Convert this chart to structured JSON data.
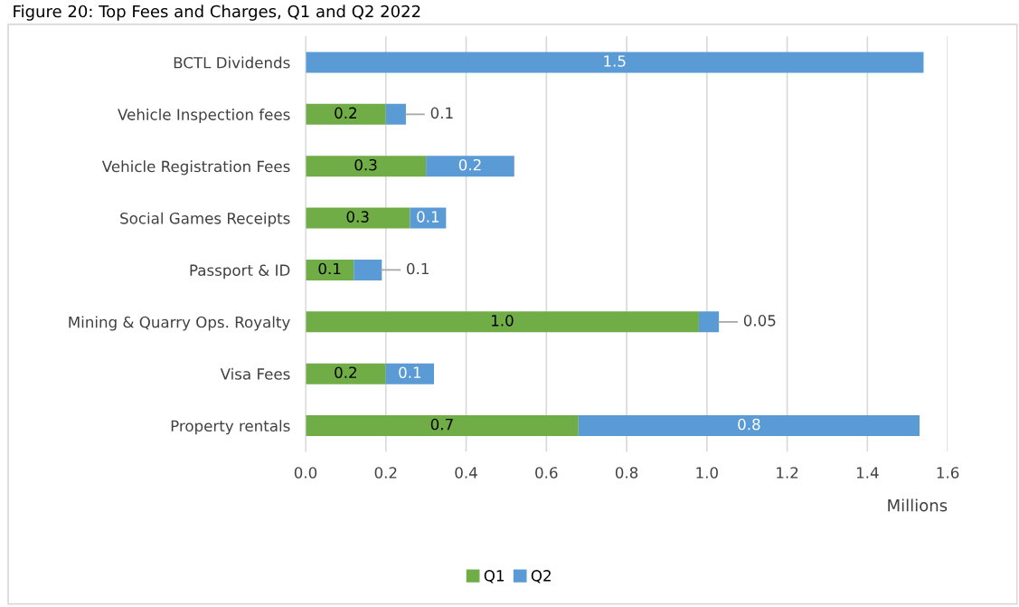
{
  "chart_data": {
    "type": "bar",
    "orientation": "horizontal",
    "stacked": true,
    "title": "Figure 20: Top Fees and Charges, Q1 and Q2 2022",
    "xlabel": "Millions",
    "categories": [
      "BCTL Dividends",
      "Vehicle Inspection fees",
      "Vehicle Registration Fees",
      "Social Games Receipts",
      "Passport & ID",
      "Mining & Quarry Ops. Royalty",
      "Visa Fees",
      "Property rentals"
    ],
    "series": [
      {
        "name": "Q1",
        "color": "#70ad47",
        "values": [
          null,
          0.2,
          0.3,
          0.26,
          0.12,
          0.98,
          0.2,
          0.68
        ],
        "value_labels": [
          null,
          "0.2",
          "0.3",
          "0.3",
          "0.1",
          "1.0",
          "0.2",
          "0.7"
        ]
      },
      {
        "name": "Q2",
        "color": "#5b9bd5",
        "values": [
          1.54,
          0.05,
          0.22,
          0.09,
          0.07,
          0.05,
          0.12,
          0.85
        ],
        "value_labels": [
          "1.5",
          "0.1",
          "0.2",
          "0.1",
          "0.1",
          "0.05",
          "0.1",
          "0.8"
        ]
      }
    ],
    "xlim": [
      0,
      1.6
    ],
    "xticks": [
      {
        "value": 0,
        "label": "0.0"
      },
      {
        "value": 0.2,
        "label": "0.2"
      },
      {
        "value": 0.4,
        "label": "0.4"
      },
      {
        "value": 0.6,
        "label": "0.6"
      },
      {
        "value": 0.8,
        "label": "0.8"
      },
      {
        "value": 1.0,
        "label": "1.0"
      },
      {
        "value": 1.2,
        "label": "1.2"
      },
      {
        "value": 1.4,
        "label": "1.4"
      },
      {
        "value": 1.6,
        "label": "1.6"
      }
    ],
    "grid": "x",
    "legend": "bottom"
  }
}
